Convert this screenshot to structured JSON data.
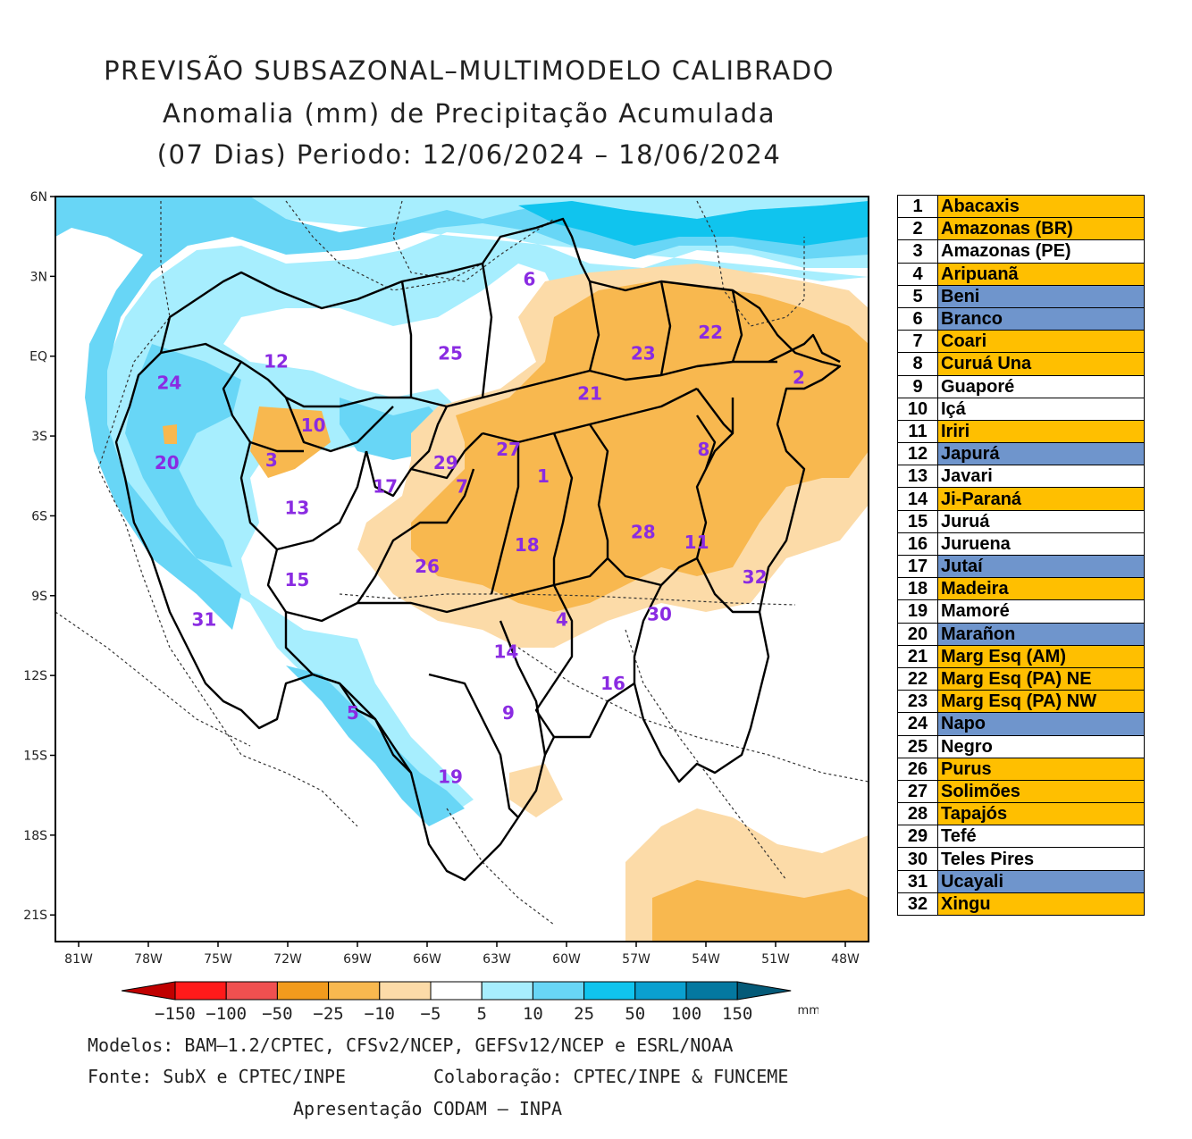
{
  "title": {
    "line1": "PREVISÃO SUBSAZONAL–MULTIMODELO CALIBRADO",
    "line2": "Anomalia (mm) de Precipitação Acumulada",
    "line3": "(07 Dias) Periodo: 12/06/2024 – 18/06/2024"
  },
  "map": {
    "lat_labels": [
      "6N",
      "3N",
      "EQ",
      "3S",
      "6S",
      "9S",
      "12S",
      "15S",
      "18S",
      "21S"
    ],
    "lon_labels": [
      "81W",
      "78W",
      "75W",
      "72W",
      "69W",
      "66W",
      "63W",
      "60W",
      "57W",
      "54W",
      "51W",
      "48W"
    ],
    "basin_labels": [
      {
        "n": "1",
        "lon": -61.0,
        "lat": -4.5
      },
      {
        "n": "2",
        "lon": -50.0,
        "lat": -0.8
      },
      {
        "n": "3",
        "lon": -72.7,
        "lat": -3.9
      },
      {
        "n": "4",
        "lon": -60.2,
        "lat": -9.9
      },
      {
        "n": "5",
        "lon": -69.2,
        "lat": -13.4
      },
      {
        "n": "6",
        "lon": -61.6,
        "lat": 2.9
      },
      {
        "n": "7",
        "lon": -64.5,
        "lat": -4.9
      },
      {
        "n": "8",
        "lon": -54.1,
        "lat": -3.5
      },
      {
        "n": "9",
        "lon": -62.5,
        "lat": -13.4
      },
      {
        "n": "10",
        "lon": -70.9,
        "lat": -2.6
      },
      {
        "n": "11",
        "lon": -54.4,
        "lat": -7.0
      },
      {
        "n": "12",
        "lon": -72.5,
        "lat": -0.2
      },
      {
        "n": "13",
        "lon": -71.6,
        "lat": -5.7
      },
      {
        "n": "14",
        "lon": -62.6,
        "lat": -11.1
      },
      {
        "n": "15",
        "lon": -71.6,
        "lat": -8.4
      },
      {
        "n": "16",
        "lon": -58.0,
        "lat": -12.3
      },
      {
        "n": "17",
        "lon": -67.8,
        "lat": -4.9
      },
      {
        "n": "18",
        "lon": -61.7,
        "lat": -7.1
      },
      {
        "n": "19",
        "lon": -65.0,
        "lat": -15.8
      },
      {
        "n": "20",
        "lon": -77.2,
        "lat": -4.0
      },
      {
        "n": "21",
        "lon": -59.0,
        "lat": -1.4
      },
      {
        "n": "22",
        "lon": -53.8,
        "lat": 0.9
      },
      {
        "n": "23",
        "lon": -56.7,
        "lat": 0.1
      },
      {
        "n": "24",
        "lon": -77.1,
        "lat": -1.0
      },
      {
        "n": "25",
        "lon": -65.0,
        "lat": 0.1
      },
      {
        "n": "26",
        "lon": -66.0,
        "lat": -7.9
      },
      {
        "n": "27",
        "lon": -62.5,
        "lat": -3.5
      },
      {
        "n": "28",
        "lon": -56.7,
        "lat": -6.6
      },
      {
        "n": "29",
        "lon": -65.2,
        "lat": -4.0
      },
      {
        "n": "30",
        "lon": -56.0,
        "lat": -9.7
      },
      {
        "n": "31",
        "lon": -75.6,
        "lat": -9.9
      },
      {
        "n": "32",
        "lon": -51.9,
        "lat": -8.3
      }
    ]
  },
  "colorbar": {
    "labels": [
      "−150",
      "−100",
      "−50",
      "−25",
      "−10",
      "−5",
      "5",
      "10",
      "25",
      "50",
      "100",
      "150"
    ],
    "unit": "mm",
    "colors": [
      "#c00000",
      "#ff1a1a",
      "#f05050",
      "#f29b1d",
      "#f8b84f",
      "#fcdba8",
      "#ffffff",
      "#a7eefe",
      "#68d6f6",
      "#10c4ee",
      "#0aa0d0",
      "#0478a0",
      "#045a78"
    ]
  },
  "legend": [
    {
      "num": "1",
      "name": "Abacaxis",
      "color": "#ffbf00"
    },
    {
      "num": "2",
      "name": "Amazonas (BR)",
      "color": "#ffbf00"
    },
    {
      "num": "3",
      "name": "Amazonas (PE)",
      "color": "#ffffff"
    },
    {
      "num": "4",
      "name": "Aripuanã",
      "color": "#ffbf00"
    },
    {
      "num": "5",
      "name": "Beni",
      "color": "#6f95cc"
    },
    {
      "num": "6",
      "name": "Branco",
      "color": "#6f95cc"
    },
    {
      "num": "7",
      "name": "Coari",
      "color": "#ffbf00"
    },
    {
      "num": "8",
      "name": "Curuá Una",
      "color": "#ffbf00"
    },
    {
      "num": "9",
      "name": "Guaporé",
      "color": "#ffffff"
    },
    {
      "num": "10",
      "name": "Içá",
      "color": "#ffffff"
    },
    {
      "num": "11",
      "name": "Iriri",
      "color": "#ffbf00"
    },
    {
      "num": "12",
      "name": "Japurá",
      "color": "#6f95cc"
    },
    {
      "num": "13",
      "name": "Javari",
      "color": "#ffffff"
    },
    {
      "num": "14",
      "name": "Ji-Paraná",
      "color": "#ffbf00"
    },
    {
      "num": "15",
      "name": "Juruá",
      "color": "#ffffff"
    },
    {
      "num": "16",
      "name": "Juruena",
      "color": "#ffffff"
    },
    {
      "num": "17",
      "name": "Jutaí",
      "color": "#6f95cc"
    },
    {
      "num": "18",
      "name": "Madeira",
      "color": "#ffbf00"
    },
    {
      "num": "19",
      "name": "Mamoré",
      "color": "#ffffff"
    },
    {
      "num": "20",
      "name": "Marañon",
      "color": "#6f95cc"
    },
    {
      "num": "21",
      "name": "Marg Esq (AM)",
      "color": "#ffbf00"
    },
    {
      "num": "22",
      "name": "Marg Esq (PA) NE",
      "color": "#ffbf00"
    },
    {
      "num": "23",
      "name": "Marg Esq (PA) NW",
      "color": "#ffbf00"
    },
    {
      "num": "24",
      "name": "Napo",
      "color": "#6f95cc"
    },
    {
      "num": "25",
      "name": "Negro",
      "color": "#ffffff"
    },
    {
      "num": "26",
      "name": "Purus",
      "color": "#ffbf00"
    },
    {
      "num": "27",
      "name": "Solimões",
      "color": "#ffbf00"
    },
    {
      "num": "28",
      "name": "Tapajós",
      "color": "#ffbf00"
    },
    {
      "num": "29",
      "name": "Tefé",
      "color": "#ffffff"
    },
    {
      "num": "30",
      "name": "Teles Pires",
      "color": "#ffffff"
    },
    {
      "num": "31",
      "name": "Ucayali",
      "color": "#6f95cc"
    },
    {
      "num": "32",
      "name": "Xingu",
      "color": "#ffbf00"
    }
  ],
  "footer": {
    "models": "Modelos: BAM–1.2/CPTEC, CFSv2/NCEP, GEFSv12/NCEP e ESRL/NOAA",
    "source": "Fonte: SubX e CPTEC/INPE",
    "collab": "Colaboração: CPTEC/INPE & FUNCEME",
    "presentation": "Apresentação CODAM – INPA"
  }
}
